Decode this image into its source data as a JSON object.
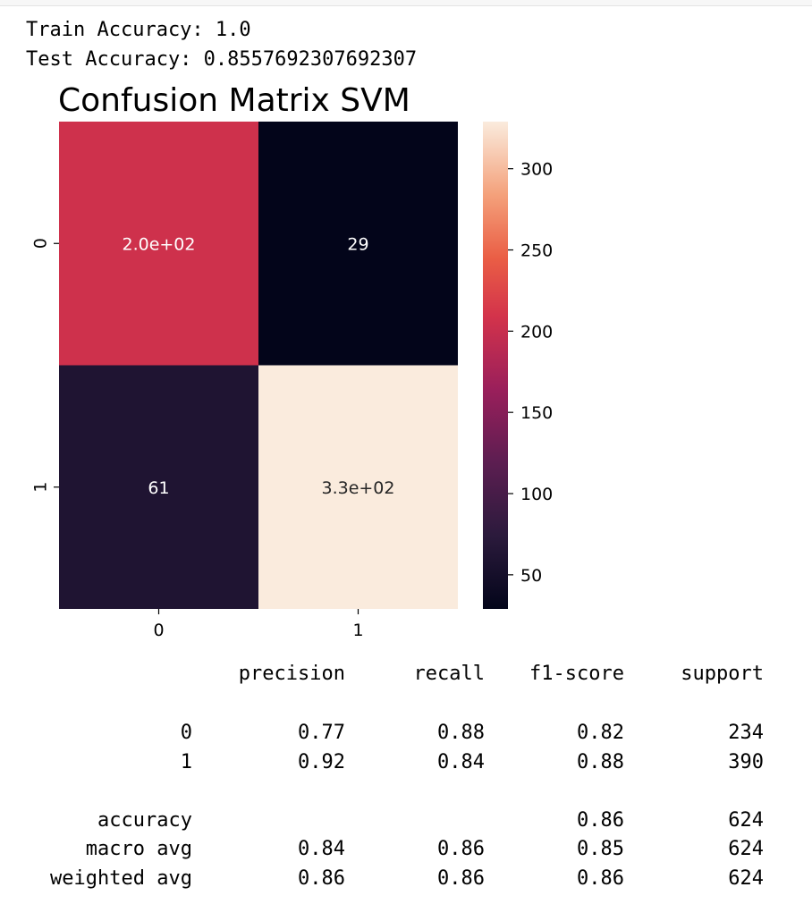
{
  "output": {
    "train_accuracy": "Train Accuracy: 1.0",
    "test_accuracy": "Test Accuracy: 0.8557692307692307"
  },
  "chart_data": {
    "type": "heatmap",
    "title": "Confusion Matrix SVM",
    "x_tick_labels": [
      "0",
      "1"
    ],
    "y_tick_labels": [
      "0",
      "1"
    ],
    "values": [
      [
        205,
        29
      ],
      [
        61,
        329
      ]
    ],
    "annotations": [
      [
        "2.0e+02",
        "29"
      ],
      [
        "61",
        "3.3e+02"
      ]
    ],
    "colorbar": {
      "range": [
        29,
        329
      ],
      "ticks": [
        "300",
        "250",
        "200",
        "150",
        "100",
        "50"
      ],
      "tick_values": [
        300,
        250,
        200,
        150,
        100,
        50
      ]
    },
    "colormap": "rocket",
    "grid": false
  },
  "report": {
    "headers": [
      "precision",
      "recall",
      "f1-score",
      "support"
    ],
    "rows": [
      {
        "label": "0",
        "precision": "0.77",
        "recall": "0.88",
        "f1": "0.82",
        "support": "234"
      },
      {
        "label": "1",
        "precision": "0.92",
        "recall": "0.84",
        "f1": "0.88",
        "support": "390"
      },
      {
        "label": "accuracy",
        "precision": "",
        "recall": "",
        "f1": "0.86",
        "support": "624"
      },
      {
        "label": "macro avg",
        "precision": "0.84",
        "recall": "0.86",
        "f1": "0.85",
        "support": "624"
      },
      {
        "label": "weighted avg",
        "precision": "0.86",
        "recall": "0.86",
        "f1": "0.86",
        "support": "624"
      }
    ]
  }
}
